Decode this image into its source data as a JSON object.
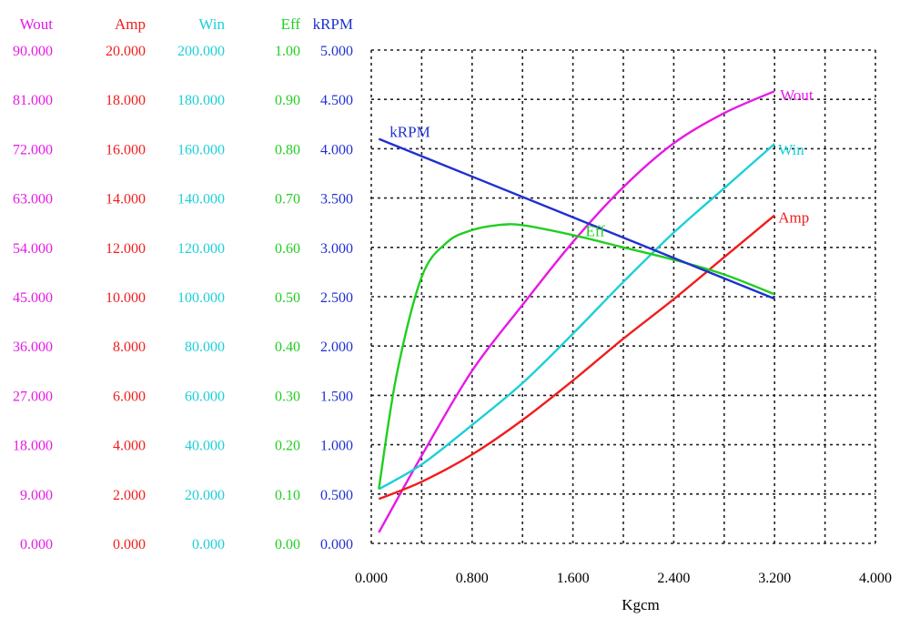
{
  "chart_data": {
    "type": "line",
    "xlabel": "Kgcm",
    "x_ticks": [
      "0.000",
      "0.800",
      "1.600",
      "2.400",
      "3.200",
      "4.000"
    ],
    "xlim": [
      0,
      4.0
    ],
    "grid": true,
    "axes": [
      {
        "key": "wout",
        "label": "Wout",
        "color": "#e619e6",
        "ticks": [
          "0.000",
          "9.000",
          "18.000",
          "27.000",
          "36.000",
          "45.000",
          "54.000",
          "63.000",
          "72.000",
          "81.000",
          "90.000"
        ]
      },
      {
        "key": "amp",
        "label": "Amp",
        "color": "#f21c1c",
        "ticks": [
          "0.000",
          "2.000",
          "4.000",
          "6.000",
          "8.000",
          "10.000",
          "12.000",
          "14.000",
          "16.000",
          "18.000",
          "20.000"
        ]
      },
      {
        "key": "win",
        "label": "Win",
        "color": "#1ccfd9",
        "ticks": [
          "0.000",
          "20.000",
          "40.000",
          "60.000",
          "80.000",
          "100.000",
          "120.000",
          "140.000",
          "160.000",
          "180.000",
          "200.000"
        ]
      },
      {
        "key": "eff",
        "label": "Eff",
        "color": "#1fcf1f",
        "ticks": [
          "0.00",
          "0.10",
          "0.20",
          "0.30",
          "0.40",
          "0.50",
          "0.60",
          "0.70",
          "0.80",
          "0.90",
          "1.00"
        ]
      },
      {
        "key": "krpm",
        "label": "kRPM",
        "color": "#2030d0",
        "ticks": [
          "0.000",
          "0.500",
          "1.000",
          "1.500",
          "2.000",
          "2.500",
          "3.000",
          "3.500",
          "4.000",
          "4.500",
          "5.000"
        ]
      }
    ],
    "series": [
      {
        "name": "Wout",
        "axis": "wout",
        "color": "#e619e6",
        "x": [
          0.06,
          0.4,
          0.8,
          1.2,
          1.6,
          2.0,
          2.4,
          2.8,
          3.2
        ],
        "y": [
          2.0,
          16.0,
          31.5,
          43.5,
          55.0,
          65.0,
          73.0,
          78.5,
          82.5
        ]
      },
      {
        "name": "Amp",
        "axis": "amp",
        "color": "#f21c1c",
        "x": [
          0.06,
          0.4,
          0.8,
          1.2,
          1.6,
          2.0,
          2.4,
          2.8,
          3.2
        ],
        "y": [
          1.8,
          2.5,
          3.6,
          5.0,
          6.6,
          8.3,
          9.9,
          11.6,
          13.3
        ]
      },
      {
        "name": "Win",
        "axis": "win",
        "color": "#1ccfd9",
        "x": [
          0.06,
          0.4,
          0.8,
          1.2,
          1.6,
          2.0,
          2.4,
          2.8,
          3.2
        ],
        "y": [
          22.0,
          32.0,
          48.0,
          65.0,
          85.0,
          106.0,
          126.0,
          144.0,
          162.0
        ]
      },
      {
        "name": "Eff",
        "axis": "eff",
        "color": "#1fcf1f",
        "x": [
          0.06,
          0.2,
          0.4,
          0.6,
          0.8,
          1.0,
          1.2,
          1.6,
          2.0,
          2.4,
          2.8,
          3.2
        ],
        "y": [
          0.11,
          0.34,
          0.54,
          0.61,
          0.635,
          0.645,
          0.645,
          0.625,
          0.6,
          0.575,
          0.545,
          0.505
        ]
      },
      {
        "name": "kRPM",
        "axis": "krpm",
        "color": "#2030d0",
        "x": [
          0.06,
          3.2
        ],
        "y": [
          4.1,
          2.48
        ]
      }
    ]
  }
}
